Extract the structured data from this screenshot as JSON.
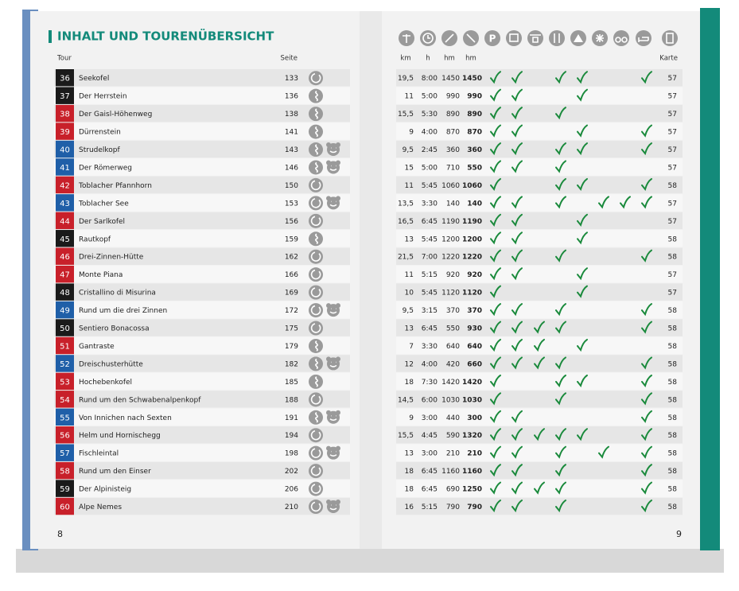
{
  "header": {
    "title": "INHALT UND TOURENÜBERSICHT",
    "tour": "Tour",
    "page": "Seite",
    "km": "km",
    "h": "h",
    "hm_up": "hm",
    "hm": "hm",
    "map": "Karte",
    "parking_icon": "P"
  },
  "footer": {
    "left_page": "8",
    "right_page": "9"
  },
  "rows": [
    {
      "nr": 36,
      "color": "#1a1a1a",
      "name": "Seekofel",
      "page": 133,
      "route": "loop",
      "kids": false,
      "km": "19,5",
      "h": "8:00",
      "hm_up": 1450,
      "hm": 1450,
      "checks": [
        true,
        true,
        false,
        true,
        true,
        false,
        false,
        true
      ],
      "map": 57
    },
    {
      "nr": 37,
      "color": "#1a1a1a",
      "name": "Der Herrstein",
      "page": 136,
      "route": "squiggle",
      "kids": false,
      "km": "11",
      "h": "5:00",
      "hm_up": 990,
      "hm": 990,
      "checks": [
        true,
        true,
        false,
        false,
        true,
        false,
        false,
        false
      ],
      "map": 57
    },
    {
      "nr": 38,
      "color": "#c8202a",
      "name": "Der Gaisl-Höhenweg",
      "page": 138,
      "route": "squiggle",
      "kids": false,
      "km": "15,5",
      "h": "5:30",
      "hm_up": 890,
      "hm": 890,
      "checks": [
        true,
        true,
        false,
        true,
        false,
        false,
        false,
        false
      ],
      "map": 57
    },
    {
      "nr": 39,
      "color": "#c8202a",
      "name": "Dürrenstein",
      "page": 141,
      "route": "squiggle",
      "kids": false,
      "km": "9",
      "h": "4:00",
      "hm_up": 870,
      "hm": 870,
      "checks": [
        true,
        true,
        false,
        false,
        true,
        false,
        false,
        true
      ],
      "map": 57
    },
    {
      "nr": 40,
      "color": "#1f5fa8",
      "name": "Strudelkopf",
      "page": 143,
      "route": "squiggle",
      "kids": true,
      "km": "9,5",
      "h": "2:45",
      "hm_up": 360,
      "hm": 360,
      "checks": [
        true,
        true,
        false,
        true,
        true,
        false,
        false,
        true
      ],
      "map": 57
    },
    {
      "nr": 41,
      "color": "#1f5fa8",
      "name": "Der Römerweg",
      "page": 146,
      "route": "squiggle",
      "kids": true,
      "km": "15",
      "h": "5:00",
      "hm_up": 710,
      "hm": 550,
      "checks": [
        true,
        true,
        false,
        true,
        false,
        false,
        false,
        false
      ],
      "map": 57
    },
    {
      "nr": 42,
      "color": "#c8202a",
      "name": "Toblacher Pfannhorn",
      "page": 150,
      "route": "loop",
      "kids": false,
      "km": "11",
      "h": "5:45",
      "hm_up": 1060,
      "hm": 1060,
      "checks": [
        true,
        false,
        false,
        true,
        true,
        false,
        false,
        true
      ],
      "map": 58
    },
    {
      "nr": 43,
      "color": "#1f5fa8",
      "name": "Toblacher See",
      "page": 153,
      "route": "loop",
      "kids": true,
      "km": "13,5",
      "h": "3:30",
      "hm_up": 140,
      "hm": 140,
      "checks": [
        true,
        true,
        false,
        true,
        false,
        true,
        true,
        true
      ],
      "map": 57
    },
    {
      "nr": 44,
      "color": "#c8202a",
      "name": "Der Sarlkofel",
      "page": 156,
      "route": "loop",
      "kids": false,
      "km": "16,5",
      "h": "6:45",
      "hm_up": 1190,
      "hm": 1190,
      "checks": [
        true,
        true,
        false,
        false,
        true,
        false,
        false,
        false
      ],
      "map": 57
    },
    {
      "nr": 45,
      "color": "#1a1a1a",
      "name": "Rautkopf",
      "page": 159,
      "route": "squiggle",
      "kids": false,
      "km": "13",
      "h": "5:45",
      "hm_up": 1200,
      "hm": 1200,
      "checks": [
        true,
        true,
        false,
        false,
        true,
        false,
        false,
        false
      ],
      "map": 58
    },
    {
      "nr": 46,
      "color": "#c8202a",
      "name": "Drei-Zinnen-Hütte",
      "page": 162,
      "route": "loop",
      "kids": false,
      "km": "21,5",
      "h": "7:00",
      "hm_up": 1220,
      "hm": 1220,
      "checks": [
        true,
        true,
        false,
        true,
        false,
        false,
        false,
        true
      ],
      "map": 58
    },
    {
      "nr": 47,
      "color": "#c8202a",
      "name": "Monte Piana",
      "page": 166,
      "route": "loop",
      "kids": false,
      "km": "11",
      "h": "5:15",
      "hm_up": 920,
      "hm": 920,
      "checks": [
        true,
        true,
        false,
        false,
        true,
        false,
        false,
        false
      ],
      "map": 57
    },
    {
      "nr": 48,
      "color": "#1a1a1a",
      "name": "Cristallino di Misurina",
      "page": 169,
      "route": "loop",
      "kids": false,
      "km": "10",
      "h": "5:45",
      "hm_up": 1120,
      "hm": 1120,
      "checks": [
        true,
        false,
        false,
        false,
        true,
        false,
        false,
        false
      ],
      "map": 57
    },
    {
      "nr": 49,
      "color": "#1f5fa8",
      "name": "Rund um die drei Zinnen",
      "page": 172,
      "route": "loop",
      "kids": true,
      "km": "9,5",
      "h": "3:15",
      "hm_up": 370,
      "hm": 370,
      "checks": [
        true,
        true,
        false,
        true,
        false,
        false,
        false,
        true
      ],
      "map": 58
    },
    {
      "nr": 50,
      "color": "#1a1a1a",
      "name": "Sentiero Bonacossa",
      "page": 175,
      "route": "loop",
      "kids": false,
      "km": "13",
      "h": "6:45",
      "hm_up": 550,
      "hm": 930,
      "checks": [
        true,
        true,
        true,
        true,
        false,
        false,
        false,
        true
      ],
      "map": 58
    },
    {
      "nr": 51,
      "color": "#c8202a",
      "name": "Gantraste",
      "page": 179,
      "route": "squiggle",
      "kids": false,
      "km": "7",
      "h": "3:30",
      "hm_up": 640,
      "hm": 640,
      "checks": [
        true,
        true,
        true,
        false,
        true,
        false,
        false,
        false
      ],
      "map": 58
    },
    {
      "nr": 52,
      "color": "#1f5fa8",
      "name": "Dreischusterhütte",
      "page": 182,
      "route": "squiggle",
      "kids": true,
      "km": "12",
      "h": "4:00",
      "hm_up": 420,
      "hm": 660,
      "checks": [
        true,
        true,
        true,
        true,
        false,
        false,
        false,
        true
      ],
      "map": 58
    },
    {
      "nr": 53,
      "color": "#c8202a",
      "name": "Hochebenkofel",
      "page": 185,
      "route": "squiggle",
      "kids": false,
      "km": "18",
      "h": "7:30",
      "hm_up": 1420,
      "hm": 1420,
      "checks": [
        true,
        false,
        false,
        true,
        true,
        false,
        false,
        true
      ],
      "map": 58
    },
    {
      "nr": 54,
      "color": "#c8202a",
      "name": "Rund um den Schwabenalpenkopf",
      "page": 188,
      "route": "loop",
      "kids": false,
      "km": "14,5",
      "h": "6:00",
      "hm_up": 1030,
      "hm": 1030,
      "checks": [
        true,
        false,
        false,
        true,
        false,
        false,
        false,
        true
      ],
      "map": 58
    },
    {
      "nr": 55,
      "color": "#1f5fa8",
      "name": "Von Innichen nach Sexten",
      "page": 191,
      "route": "squiggle",
      "kids": true,
      "km": "9",
      "h": "3:00",
      "hm_up": 440,
      "hm": 300,
      "checks": [
        true,
        true,
        false,
        false,
        false,
        false,
        false,
        true
      ],
      "map": 58
    },
    {
      "nr": 56,
      "color": "#c8202a",
      "name": "Helm und Hornischegg",
      "page": 194,
      "route": "loop",
      "kids": false,
      "km": "15,5",
      "h": "4:45",
      "hm_up": 590,
      "hm": 1320,
      "checks": [
        true,
        true,
        true,
        true,
        true,
        false,
        false,
        true
      ],
      "map": 58
    },
    {
      "nr": 57,
      "color": "#1f5fa8",
      "name": "Fischleintal",
      "page": 198,
      "route": "loop",
      "kids": true,
      "km": "13",
      "h": "3:00",
      "hm_up": 210,
      "hm": 210,
      "checks": [
        true,
        true,
        false,
        true,
        false,
        true,
        false,
        true
      ],
      "map": 58
    },
    {
      "nr": 58,
      "color": "#c8202a",
      "name": "Rund um den Einser",
      "page": 202,
      "route": "loop",
      "kids": false,
      "km": "18",
      "h": "6:45",
      "hm_up": 1160,
      "hm": 1160,
      "checks": [
        true,
        true,
        false,
        true,
        false,
        false,
        false,
        true
      ],
      "map": 58
    },
    {
      "nr": 59,
      "color": "#1a1a1a",
      "name": "Der Alpinisteig",
      "page": 206,
      "route": "loop",
      "kids": false,
      "km": "18",
      "h": "6:45",
      "hm_up": 690,
      "hm": 1250,
      "checks": [
        true,
        true,
        true,
        true,
        false,
        false,
        false,
        true
      ],
      "map": 58
    },
    {
      "nr": 60,
      "color": "#c8202a",
      "name": "Alpe Nemes",
      "page": 210,
      "route": "loop",
      "kids": true,
      "km": "16",
      "h": "5:15",
      "hm_up": 790,
      "hm": 790,
      "checks": [
        true,
        true,
        false,
        true,
        false,
        false,
        false,
        true
      ],
      "map": 58
    }
  ]
}
